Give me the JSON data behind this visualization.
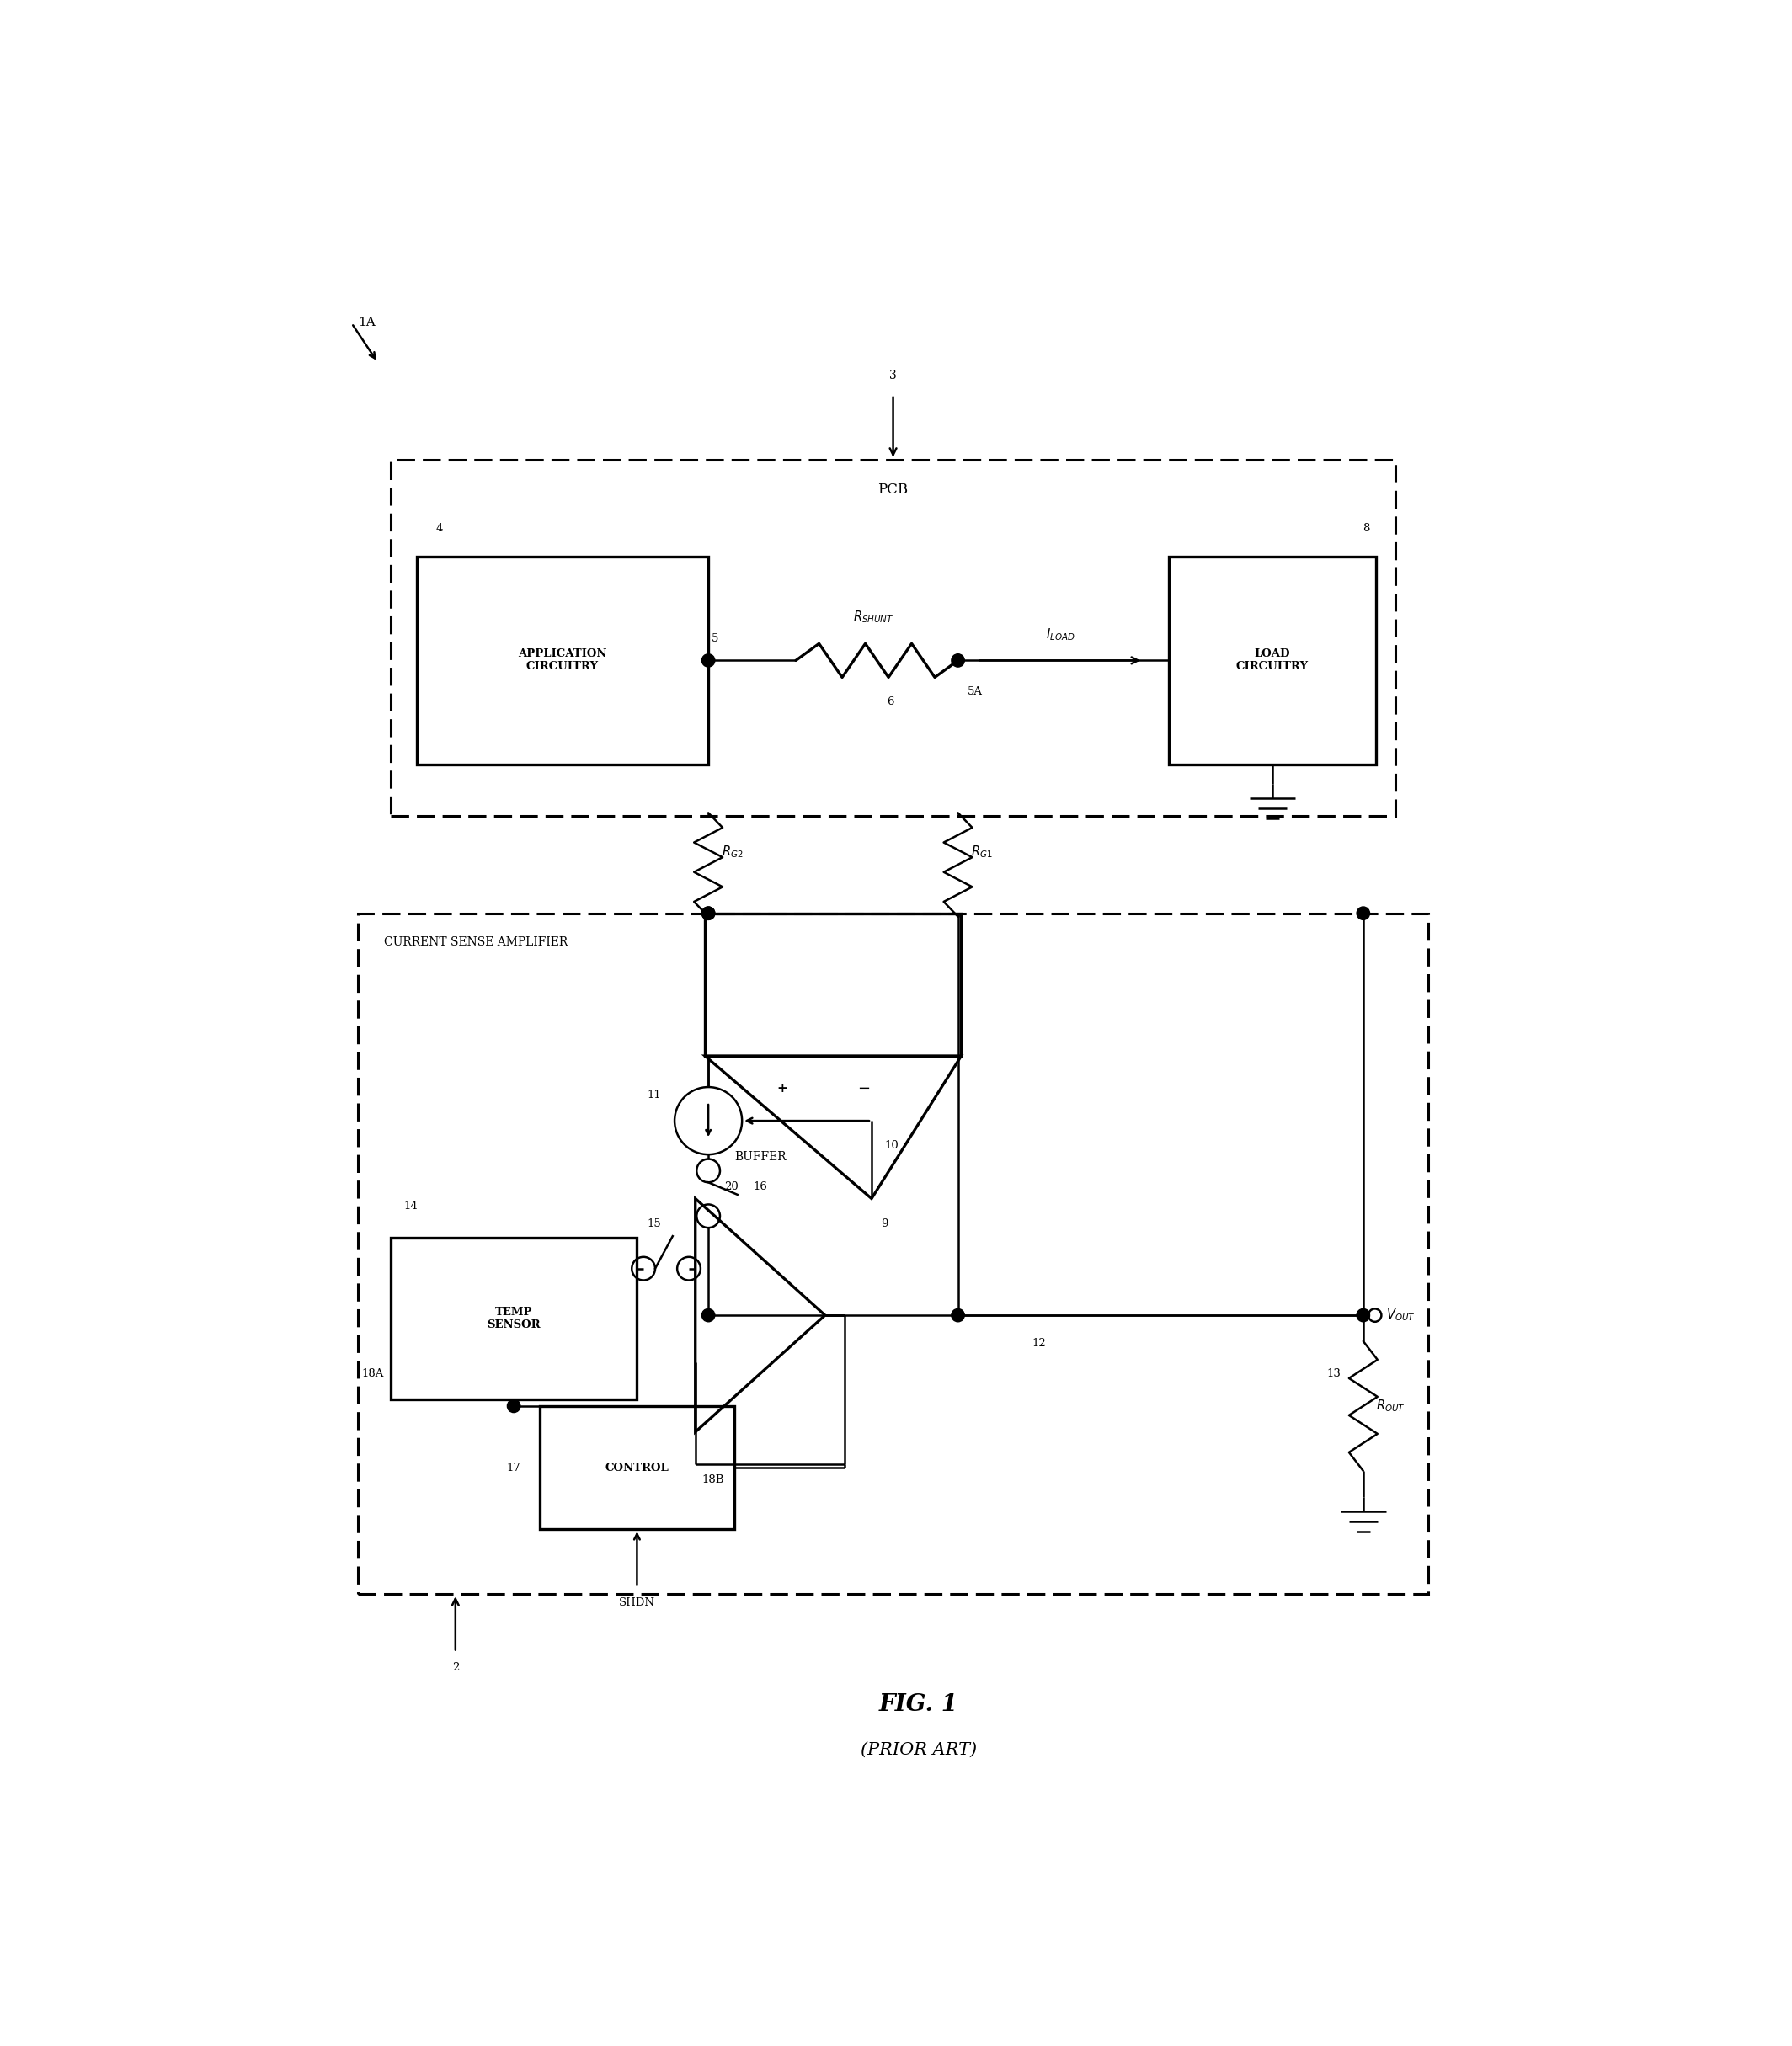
{
  "bg_color": "#ffffff",
  "line_color": "#000000",
  "fig_width": 21.28,
  "fig_height": 24.3,
  "title": "FIG. 1",
  "subtitle": "(PRIOR ART)",
  "labels": {
    "1A": "1A",
    "2": "2",
    "3": "3",
    "4": "4",
    "5": "5",
    "5A": "5A",
    "6": "6",
    "8": "8",
    "9": "9",
    "10": "10",
    "11": "11",
    "12": "12",
    "13": "13",
    "14": "14",
    "15": "15",
    "16": "16",
    "17": "17",
    "18A": "18A",
    "18B": "18B",
    "20": "20"
  },
  "box_labels": {
    "pcb": "PCB",
    "app": "APPLICATION\nCIRCUITRY",
    "load": "LOAD\nCIRCUITRY",
    "csa": "CURRENT SENSE AMPLIFIER",
    "temp": "TEMP\nSENSOR",
    "control": "CONTROL",
    "buffer": "BUFFER"
  },
  "shdn": "SHDN",
  "r_shunt": "R",
  "r_shunt_sub": "SHUNT",
  "r_g1": "R",
  "r_g1_sub": "G1",
  "r_g2": "R",
  "r_g2_sub": "G2",
  "r_out": "R",
  "r_out_sub": "OUT",
  "i_load": "I",
  "i_load_sub": "LOAD",
  "v_out": "V",
  "v_out_sub": "OUT",
  "plus": "+",
  "minus": "-"
}
